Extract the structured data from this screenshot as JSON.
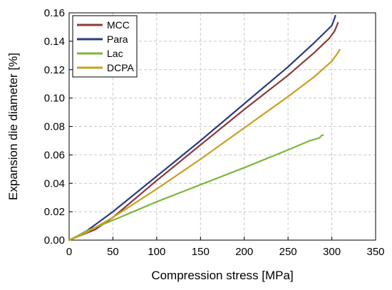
{
  "chart_data": {
    "type": "line",
    "title": "",
    "xlabel": "Compression stress [MPa]",
    "ylabel": "Expansion die diameter [%]",
    "xlim": [
      0,
      350
    ],
    "ylim": [
      0,
      0.16
    ],
    "x_ticks": [
      "0",
      "50",
      "100",
      "150",
      "200",
      "250",
      "300",
      "350"
    ],
    "y_ticks": [
      "0.00",
      "0.02",
      "0.04",
      "0.06",
      "0.08",
      "0.10",
      "0.12",
      "0.14",
      "0.16"
    ],
    "grid": true,
    "legend_position": "top-left",
    "series": [
      {
        "name": "MCC",
        "color": "#8B3A3A",
        "points": [
          [
            0,
            0
          ],
          [
            10,
            0.0025
          ],
          [
            20,
            0.005
          ],
          [
            30,
            0.0075
          ],
          [
            50,
            0.016
          ],
          [
            100,
            0.042
          ],
          [
            150,
            0.067
          ],
          [
            200,
            0.092
          ],
          [
            250,
            0.116
          ],
          [
            280,
            0.132
          ],
          [
            297,
            0.142
          ],
          [
            303,
            0.147
          ],
          [
            307,
            0.153
          ]
        ]
      },
      {
        "name": "Para",
        "color": "#2B3A7E",
        "points": [
          [
            0,
            0
          ],
          [
            10,
            0.003
          ],
          [
            20,
            0.0065
          ],
          [
            30,
            0.011
          ],
          [
            50,
            0.02
          ],
          [
            100,
            0.045
          ],
          [
            150,
            0.07
          ],
          [
            200,
            0.096
          ],
          [
            250,
            0.122
          ],
          [
            280,
            0.139
          ],
          [
            300,
            0.151
          ],
          [
            303,
            0.156
          ],
          [
            304,
            0.158
          ]
        ]
      },
      {
        "name": "Lac",
        "color": "#7FB53A",
        "points": [
          [
            0,
            0
          ],
          [
            10,
            0.003
          ],
          [
            20,
            0.0065
          ],
          [
            30,
            0.009
          ],
          [
            50,
            0.014
          ],
          [
            100,
            0.027
          ],
          [
            150,
            0.039
          ],
          [
            200,
            0.051
          ],
          [
            250,
            0.0635
          ],
          [
            275,
            0.07
          ],
          [
            286,
            0.072
          ],
          [
            288,
            0.0735
          ],
          [
            290,
            0.074
          ]
        ]
      },
      {
        "name": "DCPA",
        "color": "#C8A020",
        "points": [
          [
            0,
            0
          ],
          [
            10,
            0.0025
          ],
          [
            20,
            0.0055
          ],
          [
            30,
            0.009
          ],
          [
            50,
            0.016
          ],
          [
            100,
            0.036
          ],
          [
            150,
            0.057
          ],
          [
            200,
            0.079
          ],
          [
            250,
            0.101
          ],
          [
            280,
            0.115
          ],
          [
            300,
            0.126
          ],
          [
            306,
            0.131
          ],
          [
            309,
            0.134
          ]
        ]
      }
    ]
  }
}
